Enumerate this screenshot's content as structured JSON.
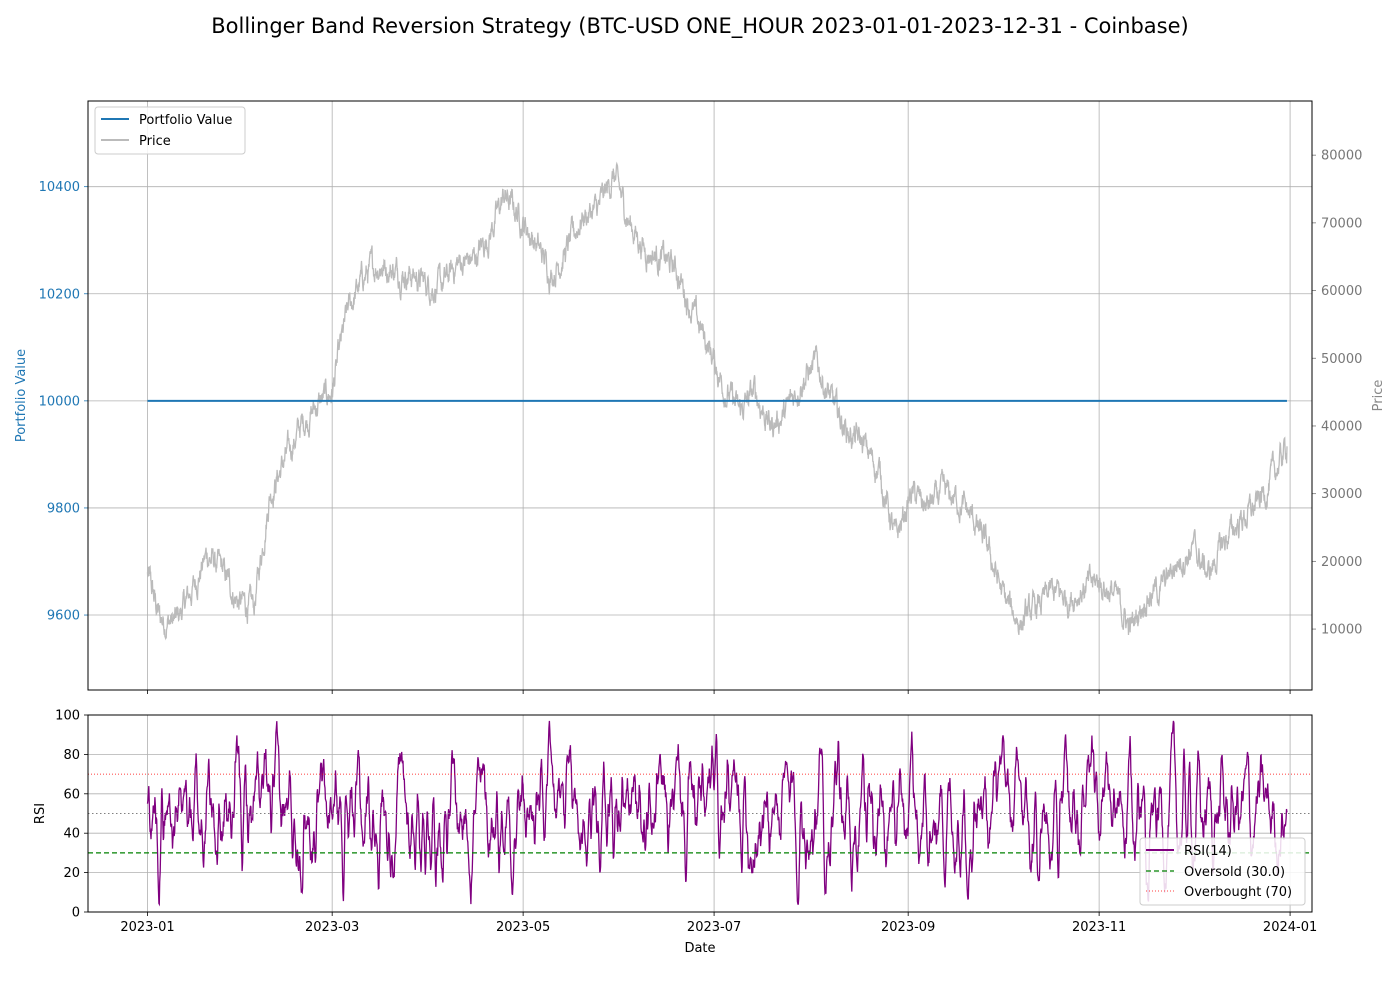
{
  "figure": {
    "title": "Bollinger Band Reversion Strategy (BTC-USD ONE_HOUR 2023-01-01-2023-12-31 - Coinbase)"
  },
  "colors": {
    "portfolio": "#1f77b4",
    "price": "#bbbbbb",
    "rsi": "#800080",
    "oversold": "#008000",
    "overbought": "#ff0000",
    "midline": "#808080",
    "grid": "#b0b0b0"
  },
  "chart_data": [
    {
      "type": "line",
      "panel": "main",
      "title": "",
      "xlabel": "",
      "ylabel": "Portfolio Value",
      "y2label": "Price",
      "x_ticks": [
        "2023-01",
        "2023-03",
        "2023-05",
        "2023-07",
        "2023-09",
        "2023-11",
        "2024-01"
      ],
      "y_ticks": [
        9600,
        9800,
        10000,
        10200,
        10400
      ],
      "y2_ticks": [
        10000,
        20000,
        30000,
        40000,
        50000,
        60000,
        70000,
        80000
      ],
      "xlim": [
        "2022-12-13",
        "2024-01-08"
      ],
      "ylim": [
        9460,
        10560
      ],
      "y2lim": [
        1000,
        88000
      ],
      "grid": true,
      "legend_position": "top-left",
      "series": [
        {
          "name": "Portfolio Value",
          "axis": "left",
          "x": [
            "2023-01-01",
            "2023-12-31"
          ],
          "values": [
            10000,
            10000
          ]
        },
        {
          "name": "Price",
          "axis": "right",
          "x": [
            "2023-01-01",
            "2023-01-05",
            "2023-01-10",
            "2023-01-15",
            "2023-01-20",
            "2023-01-25",
            "2023-01-30",
            "2023-02-04",
            "2023-02-09",
            "2023-02-14",
            "2023-02-19",
            "2023-02-24",
            "2023-03-01",
            "2023-03-06",
            "2023-03-11",
            "2023-03-16",
            "2023-03-21",
            "2023-03-26",
            "2023-03-31",
            "2023-04-05",
            "2023-04-10",
            "2023-04-15",
            "2023-04-20",
            "2023-04-25",
            "2023-04-30",
            "2023-05-05",
            "2023-05-10",
            "2023-05-15",
            "2023-05-20",
            "2023-05-25",
            "2023-05-30",
            "2023-06-04",
            "2023-06-09",
            "2023-06-14",
            "2023-06-19",
            "2023-06-24",
            "2023-06-29",
            "2023-07-04",
            "2023-07-09",
            "2023-07-14",
            "2023-07-19",
            "2023-07-24",
            "2023-07-29",
            "2023-08-03",
            "2023-08-08",
            "2023-08-13",
            "2023-08-18",
            "2023-08-23",
            "2023-08-28",
            "2023-09-02",
            "2023-09-07",
            "2023-09-12",
            "2023-09-17",
            "2023-09-22",
            "2023-09-27",
            "2023-10-02",
            "2023-10-07",
            "2023-10-12",
            "2023-10-17",
            "2023-10-22",
            "2023-10-27",
            "2023-11-01",
            "2023-11-06",
            "2023-11-11",
            "2023-11-16",
            "2023-11-21",
            "2023-11-26",
            "2023-12-01",
            "2023-12-06",
            "2023-12-11",
            "2023-12-16",
            "2023-12-21",
            "2023-12-26",
            "2023-12-31"
          ],
          "values": [
            18000,
            11500,
            11000,
            15500,
            21000,
            18500,
            14000,
            13000,
            30000,
            35000,
            40000,
            43000,
            45000,
            57000,
            62000,
            64000,
            63000,
            62500,
            61000,
            60500,
            64000,
            64500,
            68000,
            74000,
            71000,
            67000,
            62500,
            66000,
            71000,
            72000,
            77000,
            70000,
            66000,
            65000,
            63000,
            57000,
            52000,
            46000,
            42000,
            45000,
            40000,
            42000,
            47000,
            49000,
            43000,
            39000,
            37000,
            33000,
            23000,
            30000,
            28000,
            30000,
            29000,
            26000,
            21000,
            14000,
            11000,
            13000,
            15500,
            14500,
            16000,
            17000,
            15000,
            10000,
            15000,
            16000,
            20000,
            22000,
            18000,
            23000,
            26000,
            28000,
            32000,
            37000
          ]
        }
      ]
    },
    {
      "type": "line",
      "panel": "rsi",
      "title": "",
      "xlabel": "Date",
      "ylabel": "RSI",
      "x_ticks": [
        "2023-01",
        "2023-03",
        "2023-05",
        "2023-07",
        "2023-09",
        "2023-11",
        "2024-01"
      ],
      "y_ticks": [
        0,
        20,
        40,
        60,
        80,
        100
      ],
      "ylim": [
        0,
        100
      ],
      "grid": true,
      "legend_position": "lower-right",
      "series": [
        {
          "name": "RSI(14)",
          "x_range": [
            "2023-01-01",
            "2023-12-31"
          ],
          "min": 4,
          "max": 97,
          "mean": 50
        }
      ],
      "reference_lines": [
        {
          "name": "Oversold (30.0)",
          "y": 30
        },
        {
          "name": "Overbought (70)",
          "y": 70
        },
        {
          "y": 50
        }
      ]
    }
  ]
}
